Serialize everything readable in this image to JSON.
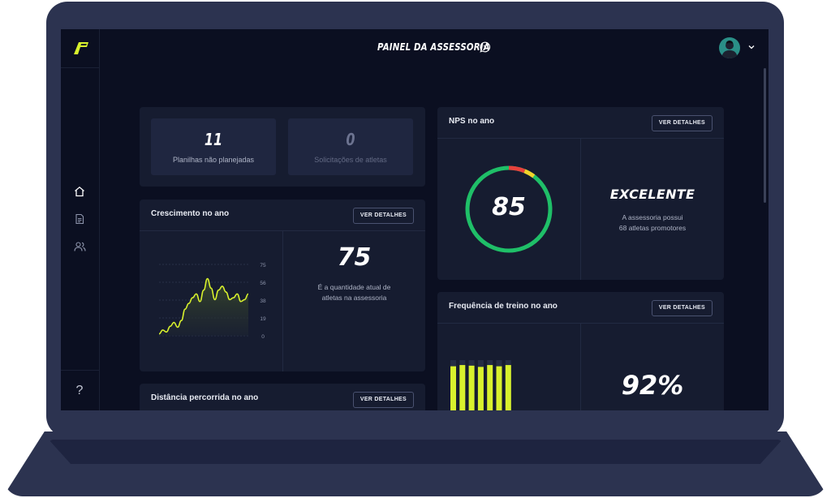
{
  "header": {
    "title": "PAINEL DA ASSESSORIA"
  },
  "icons": {
    "logo": "logo-icon",
    "whatsapp": "whatsapp-icon",
    "home": "home-icon",
    "document": "document-icon",
    "users": "users-icon",
    "help": "help-icon",
    "chevron": "chevron-down-icon"
  },
  "sidebar": {
    "help_label": "?"
  },
  "stats": [
    {
      "value": "11",
      "label": "Planilhas não planejadas"
    },
    {
      "value": "0",
      "label": "Solicitações de atletas"
    }
  ],
  "details_label": "VER DETALHES",
  "growth": {
    "title": "Crescimento no ano",
    "value": "75",
    "description_line1": "É a quantidade atual de",
    "description_line2": "atletas na assessoria"
  },
  "nps": {
    "title": "NPS no ano",
    "score": "85",
    "rating": "EXCELENTE",
    "description_line1": "A assessoria possui",
    "description_line2": "68 atletas promotores"
  },
  "frequency": {
    "title": "Frequência de treino no ano",
    "value": "92%"
  },
  "distance": {
    "title": "Distância percorrida no ano"
  },
  "colors": {
    "accent": "#d8f12d",
    "background": "#0b0f21",
    "card": "#161c30",
    "nps_green": "#1fbf68",
    "nps_red": "#e8413c",
    "nps_yellow": "#f2d32a"
  },
  "chart_data": [
    {
      "type": "area",
      "title": "Crescimento no ano",
      "y_ticks": [
        "75",
        "56",
        "38",
        "19",
        "0"
      ],
      "ylim": [
        0,
        75
      ],
      "x": [
        1,
        2,
        3,
        4,
        5,
        6,
        7,
        8,
        9,
        10,
        11,
        12,
        13,
        14,
        15,
        16,
        17,
        18,
        19,
        20,
        21,
        22,
        23,
        24,
        25
      ],
      "values": [
        2,
        6,
        4,
        10,
        14,
        9,
        16,
        28,
        34,
        40,
        44,
        36,
        48,
        60,
        50,
        38,
        48,
        52,
        46,
        38,
        40,
        44,
        36,
        38,
        44
      ],
      "grid": true
    },
    {
      "type": "bar",
      "title": "Frequência de treino no ano",
      "values": [
        90,
        92,
        91,
        89,
        92,
        90,
        92
      ],
      "ylim": [
        0,
        100
      ]
    }
  ]
}
